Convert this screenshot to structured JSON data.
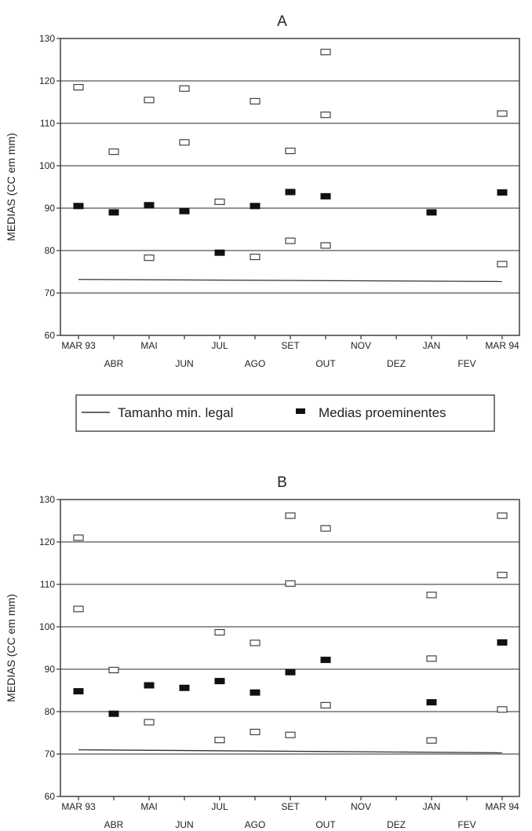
{
  "chart_data": [
    {
      "type": "scatter",
      "title": "A",
      "ylabel": "MEDIAS (CC em mm)",
      "ylim": [
        60,
        130
      ],
      "yticks": [
        "60",
        "70",
        "80",
        "90",
        "100",
        "110",
        "120",
        "130"
      ],
      "categories": [
        "MAR 93",
        "ABR",
        "MAI",
        "JUN",
        "JUL",
        "AGO",
        "SET",
        "OUT",
        "NOV",
        "DEZ",
        "JAN",
        "FEV",
        "MAR 94"
      ],
      "grid": true,
      "series": [
        {
          "name": "Medias proeminentes",
          "marker": "filled",
          "points": [
            {
              "x": "MAR 93",
              "y": 90.5
            },
            {
              "x": "ABR",
              "y": 89.0
            },
            {
              "x": "MAI",
              "y": 90.7
            },
            {
              "x": "JUN",
              "y": 89.3
            },
            {
              "x": "JUL",
              "y": 79.5
            },
            {
              "x": "AGO",
              "y": 90.5
            },
            {
              "x": "SET",
              "y": 93.8
            },
            {
              "x": "OUT",
              "y": 92.8
            },
            {
              "x": "JAN",
              "y": 89.0
            },
            {
              "x": "MAR 94",
              "y": 93.7
            }
          ]
        },
        {
          "marker": "open",
          "points": [
            {
              "x": "MAR 93",
              "y": 118.5
            },
            {
              "x": "ABR",
              "y": 103.3
            },
            {
              "x": "MAI",
              "y": 115.5
            },
            {
              "x": "MAI",
              "y": 78.3
            },
            {
              "x": "JUN",
              "y": 118.2
            },
            {
              "x": "JUN",
              "y": 105.5
            },
            {
              "x": "JUL",
              "y": 91.5
            },
            {
              "x": "AGO",
              "y": 115.2
            },
            {
              "x": "AGO",
              "y": 78.5
            },
            {
              "x": "SET",
              "y": 103.5
            },
            {
              "x": "SET",
              "y": 82.3
            },
            {
              "x": "OUT",
              "y": 126.8
            },
            {
              "x": "OUT",
              "y": 112.0
            },
            {
              "x": "OUT",
              "y": 81.2
            },
            {
              "x": "MAR 94",
              "y": 112.3
            },
            {
              "x": "MAR 94",
              "y": 76.8
            }
          ]
        },
        {
          "name": "Tamanho min. legal",
          "type": "line",
          "points": [
            {
              "x": "MAR 93",
              "y": 73.2
            },
            {
              "x": "MAR 94",
              "y": 72.7
            }
          ]
        }
      ]
    },
    {
      "type": "scatter",
      "title": "B",
      "ylabel": "MEDIAS (CC em mm)",
      "ylim": [
        60,
        130
      ],
      "yticks": [
        "60",
        "70",
        "80",
        "90",
        "100",
        "110",
        "120",
        "130"
      ],
      "categories": [
        "MAR 93",
        "ABR",
        "MAI",
        "JUN",
        "JUL",
        "AGO",
        "SET",
        "OUT",
        "NOV",
        "DEZ",
        "JAN",
        "FEV",
        "MAR 94"
      ],
      "grid": true,
      "series": [
        {
          "name": "Medias proeminentes",
          "marker": "filled",
          "points": [
            {
              "x": "MAR 93",
              "y": 84.8
            },
            {
              "x": "ABR",
              "y": 79.5
            },
            {
              "x": "MAI",
              "y": 86.2
            },
            {
              "x": "JUN",
              "y": 85.6
            },
            {
              "x": "JUL",
              "y": 87.2
            },
            {
              "x": "AGO",
              "y": 84.5
            },
            {
              "x": "SET",
              "y": 89.3
            },
            {
              "x": "OUT",
              "y": 92.2
            },
            {
              "x": "JAN",
              "y": 82.2
            },
            {
              "x": "MAR 94",
              "y": 96.3
            }
          ]
        },
        {
          "marker": "open",
          "points": [
            {
              "x": "MAR 93",
              "y": 121.0
            },
            {
              "x": "MAR 93",
              "y": 104.2
            },
            {
              "x": "ABR",
              "y": 89.8
            },
            {
              "x": "MAI",
              "y": 77.5
            },
            {
              "x": "JUL",
              "y": 98.7
            },
            {
              "x": "JUL",
              "y": 73.3
            },
            {
              "x": "AGO",
              "y": 96.2
            },
            {
              "x": "AGO",
              "y": 75.2
            },
            {
              "x": "SET",
              "y": 126.2
            },
            {
              "x": "SET",
              "y": 110.2
            },
            {
              "x": "SET",
              "y": 74.5
            },
            {
              "x": "OUT",
              "y": 123.2
            },
            {
              "x": "OUT",
              "y": 81.5
            },
            {
              "x": "JAN",
              "y": 107.5
            },
            {
              "x": "JAN",
              "y": 92.5
            },
            {
              "x": "JAN",
              "y": 73.2
            },
            {
              "x": "MAR 94",
              "y": 126.2
            },
            {
              "x": "MAR 94",
              "y": 112.2
            },
            {
              "x": "MAR 94",
              "y": 80.5
            }
          ]
        },
        {
          "name": "Tamanho min. legal",
          "type": "line",
          "points": [
            {
              "x": "MAR 93",
              "y": 71.0
            },
            {
              "x": "MAR 94",
              "y": 70.3
            }
          ]
        }
      ]
    }
  ],
  "legend": {
    "line_label": "Tamanho min. legal",
    "marker_label": "Medias proeminentes"
  }
}
